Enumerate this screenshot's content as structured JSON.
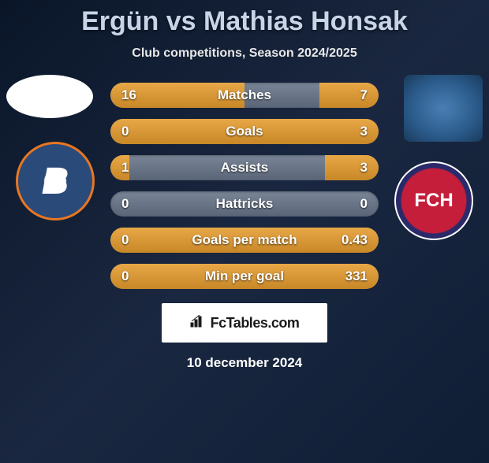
{
  "title": "Ergün vs Mathias Honsak",
  "subtitle": "Club competitions, Season 2024/2025",
  "date": "10 december 2024",
  "watermark": "FcTables.com",
  "player_left": {
    "name": "Ergün",
    "club_badge_letter": "B",
    "club_badge_colors": {
      "bg": "#2a4a7a",
      "border": "#e87722",
      "text": "#ffffff"
    }
  },
  "player_right": {
    "name": "Mathias Honsak",
    "club_badge_text": "FCH",
    "club_badge_colors": {
      "bg": "#c41e3a",
      "outer": "#2a2a6a",
      "text": "#ffffff"
    }
  },
  "stats": [
    {
      "label": "Matches",
      "left_value": "16",
      "right_value": "7",
      "left_fill_pct": 50,
      "right_fill_pct": 22
    },
    {
      "label": "Goals",
      "left_value": "0",
      "right_value": "3",
      "left_fill_pct": 0,
      "right_fill_pct": 100
    },
    {
      "label": "Assists",
      "left_value": "1",
      "right_value": "3",
      "left_fill_pct": 7,
      "right_fill_pct": 20
    },
    {
      "label": "Hattricks",
      "left_value": "0",
      "right_value": "0",
      "left_fill_pct": 0,
      "right_fill_pct": 0
    },
    {
      "label": "Goals per match",
      "left_value": "0",
      "right_value": "0.43",
      "left_fill_pct": 0,
      "right_fill_pct": 100
    },
    {
      "label": "Min per goal",
      "left_value": "0",
      "right_value": "331",
      "left_fill_pct": 0,
      "right_fill_pct": 100
    }
  ],
  "colors": {
    "bg_gradient_start": "#0a1628",
    "bg_gradient_mid": "#1a2740",
    "bg_gradient_end": "#0f1d35",
    "title_color": "#c8d4e8",
    "bar_bg": "#7a8698",
    "bar_fill": "#e8a848",
    "text_white": "#ffffff"
  }
}
